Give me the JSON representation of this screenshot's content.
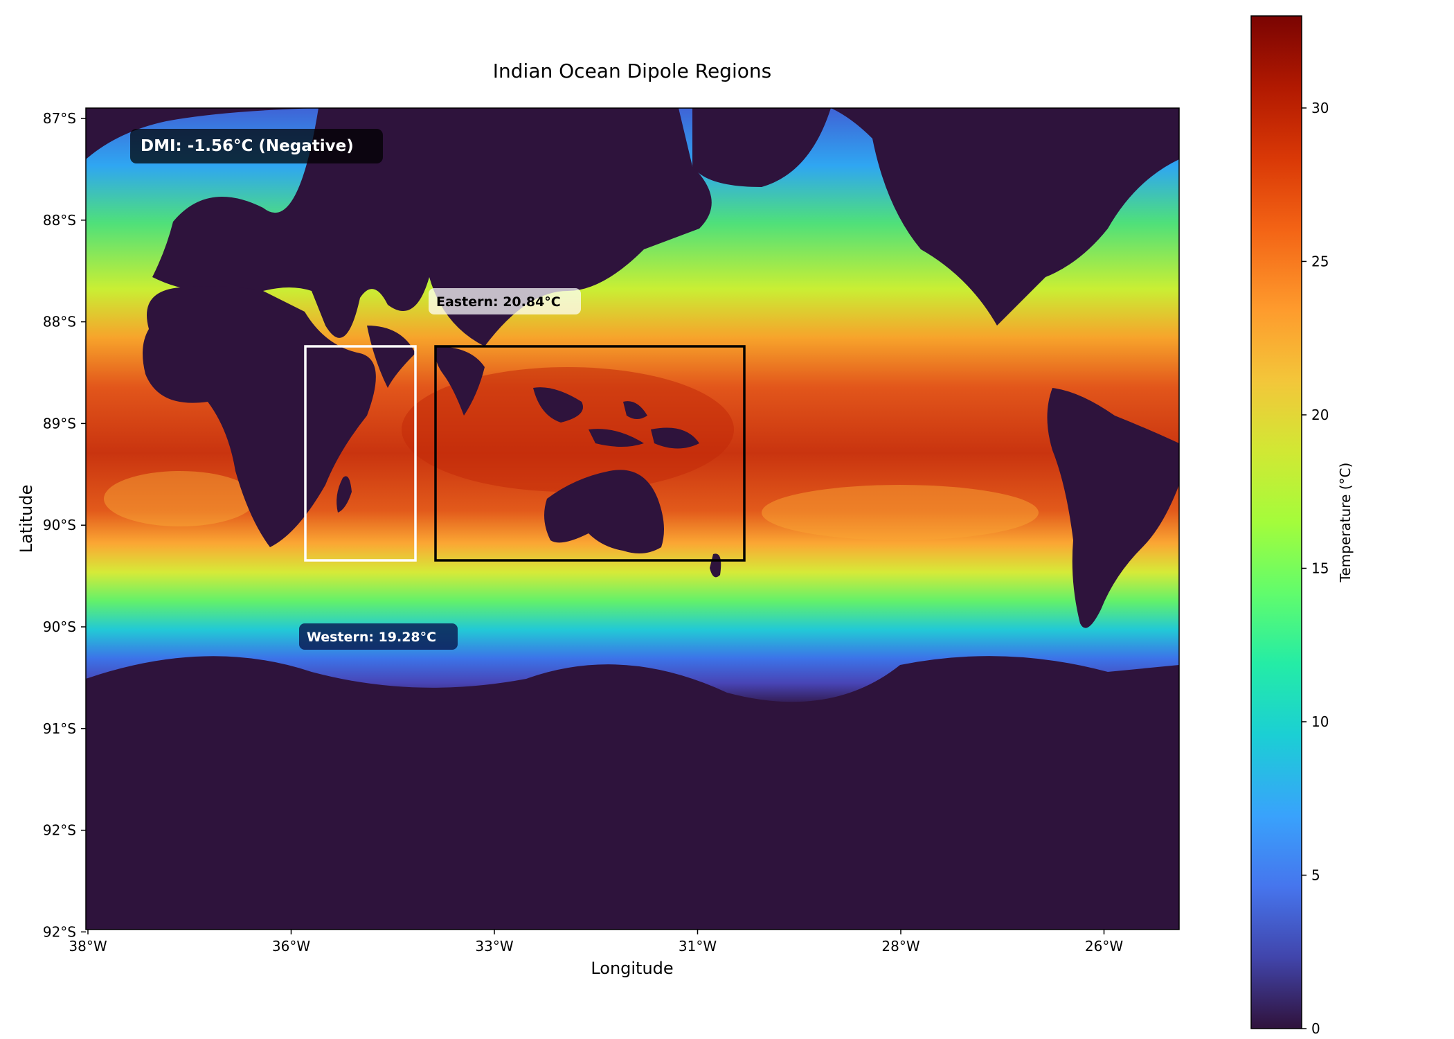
{
  "chart_data": {
    "type": "heatmap",
    "title": "Indian Ocean Dipole Regions",
    "xlabel": "Longitude",
    "ylabel": "Latitude",
    "x_tick_labels": [
      "38°W",
      "36°W",
      "33°W",
      "31°W",
      "28°W",
      "26°W"
    ],
    "y_tick_labels": [
      "87°S",
      "88°S",
      "88°S",
      "89°S",
      "90°S",
      "90°S",
      "91°S",
      "92°S",
      "92°S"
    ],
    "colorbar": {
      "label": "Temperature (°C)",
      "range": [
        0,
        33
      ],
      "ticks": [
        "0",
        "5",
        "10",
        "15",
        "20",
        "25",
        "30"
      ],
      "colormap": "turbo"
    },
    "annotations": {
      "dmi": "DMI: -1.56°C (Negative)",
      "eastern": "Eastern: 20.84°C",
      "western": "Western: 19.28°C"
    },
    "land_color": "#2e133c",
    "regions": [
      {
        "name": "Western",
        "mean_temp": 19.28,
        "box_color": "#ffffff"
      },
      {
        "name": "Eastern",
        "mean_temp": 20.84,
        "box_color": "#000000"
      }
    ],
    "dmi_value": -1.56,
    "grid": false
  }
}
